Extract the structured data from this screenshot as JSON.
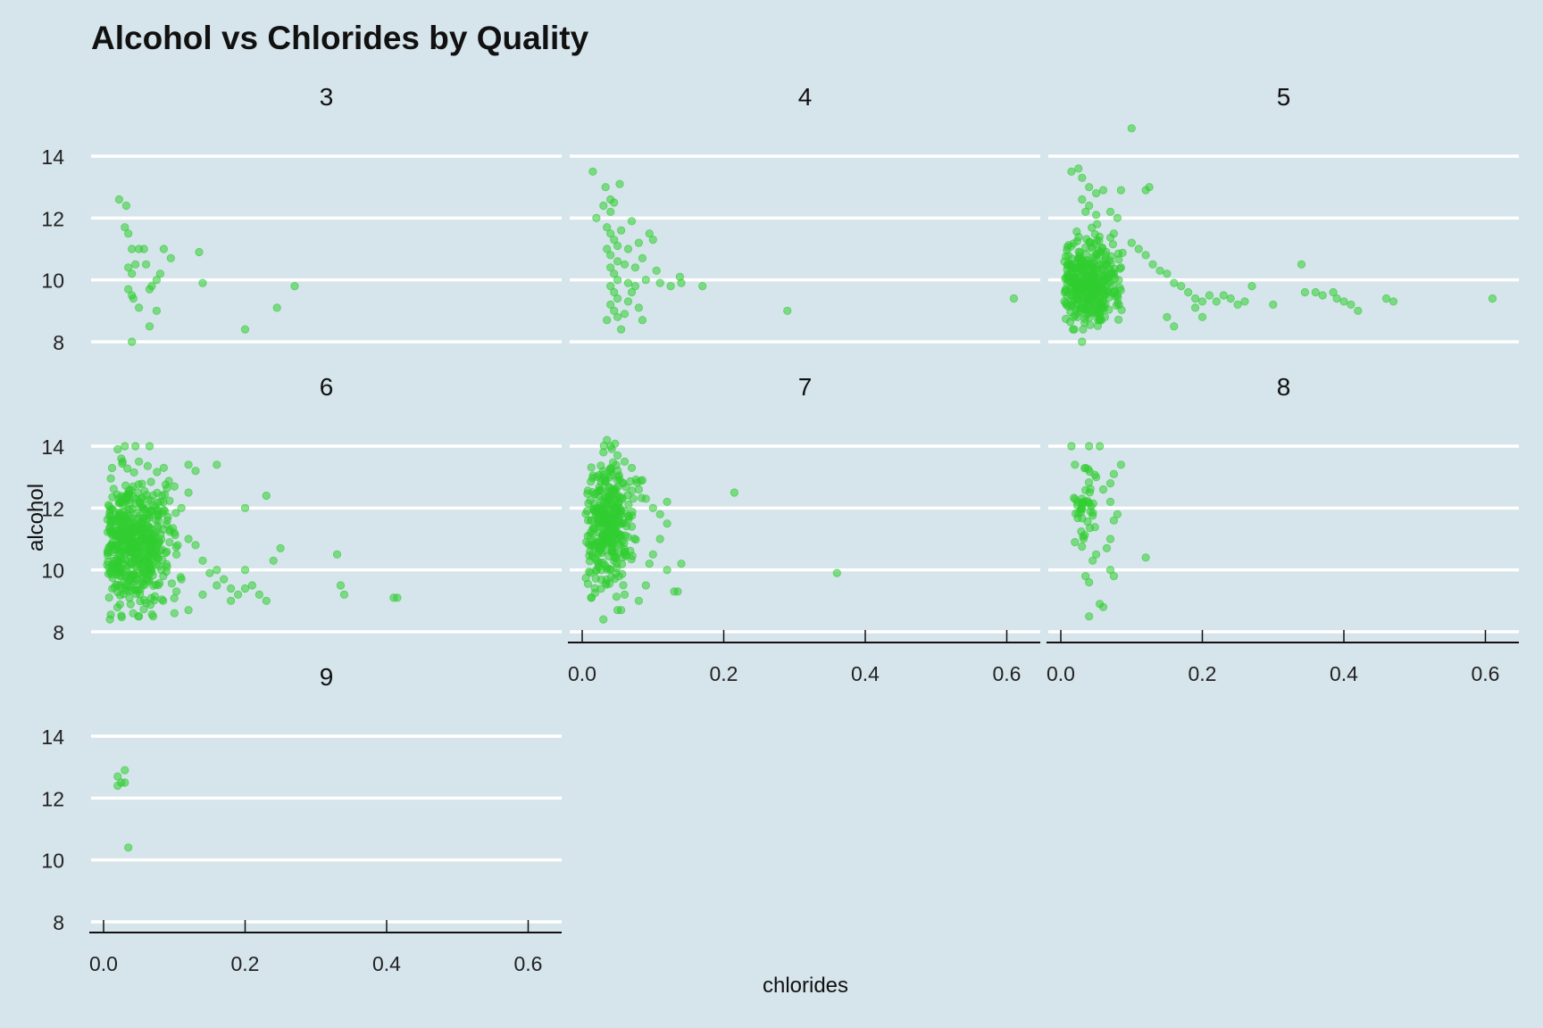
{
  "chart_data": {
    "type": "scatter",
    "title": "Alcohol vs Chlorides by Quality",
    "xlabel": "chlorides",
    "ylabel": "alcohol",
    "xlim": [
      -0.02,
      0.64
    ],
    "ylim": [
      7.6,
      15.2
    ],
    "x_ticks": [
      0.0,
      0.2,
      0.4,
      0.6
    ],
    "x_tick_labels": [
      "0.0",
      "0.2",
      "0.4",
      "0.6"
    ],
    "y_ticks": [
      8,
      10,
      12,
      14
    ],
    "y_tick_labels": [
      "8",
      "10",
      "12",
      "14"
    ],
    "grid": "horizontal major lines",
    "legend": "none",
    "point_color": "#32cd32",
    "facets": [
      {
        "label": "3",
        "points": [
          [
            0.022,
            12.6
          ],
          [
            0.032,
            12.4
          ],
          [
            0.03,
            11.7
          ],
          [
            0.035,
            11.5
          ],
          [
            0.04,
            11.0
          ],
          [
            0.05,
            11.0
          ],
          [
            0.057,
            11.0
          ],
          [
            0.06,
            10.5
          ],
          [
            0.045,
            10.5
          ],
          [
            0.035,
            10.4
          ],
          [
            0.04,
            10.2
          ],
          [
            0.085,
            11.0
          ],
          [
            0.095,
            10.7
          ],
          [
            0.135,
            10.9
          ],
          [
            0.08,
            10.2
          ],
          [
            0.075,
            10.0
          ],
          [
            0.068,
            9.8
          ],
          [
            0.065,
            9.7
          ],
          [
            0.035,
            9.7
          ],
          [
            0.04,
            9.5
          ],
          [
            0.042,
            9.4
          ],
          [
            0.05,
            9.1
          ],
          [
            0.075,
            9.0
          ],
          [
            0.065,
            8.5
          ],
          [
            0.04,
            8.0
          ],
          [
            0.2,
            8.4
          ],
          [
            0.14,
            9.9
          ],
          [
            0.245,
            9.1
          ],
          [
            0.27,
            9.8
          ]
        ]
      },
      {
        "label": "4",
        "points": [
          [
            0.015,
            13.5
          ],
          [
            0.033,
            13.0
          ],
          [
            0.053,
            13.1
          ],
          [
            0.04,
            12.6
          ],
          [
            0.045,
            12.5
          ],
          [
            0.03,
            12.4
          ],
          [
            0.04,
            12.2
          ],
          [
            0.02,
            12.0
          ],
          [
            0.035,
            11.7
          ],
          [
            0.04,
            11.5
          ],
          [
            0.045,
            11.3
          ],
          [
            0.05,
            11.1
          ],
          [
            0.035,
            11.0
          ],
          [
            0.04,
            10.8
          ],
          [
            0.05,
            10.6
          ],
          [
            0.04,
            10.4
          ],
          [
            0.045,
            10.2
          ],
          [
            0.05,
            10.0
          ],
          [
            0.04,
            9.8
          ],
          [
            0.045,
            9.6
          ],
          [
            0.05,
            9.4
          ],
          [
            0.04,
            9.2
          ],
          [
            0.045,
            9.0
          ],
          [
            0.05,
            8.8
          ],
          [
            0.035,
            8.7
          ],
          [
            0.055,
            8.4
          ],
          [
            0.06,
            10.5
          ],
          [
            0.065,
            9.9
          ],
          [
            0.07,
            9.6
          ],
          [
            0.075,
            10.4
          ],
          [
            0.08,
            11.2
          ],
          [
            0.085,
            10.7
          ],
          [
            0.09,
            10.0
          ],
          [
            0.095,
            11.5
          ],
          [
            0.1,
            11.3
          ],
          [
            0.105,
            10.3
          ],
          [
            0.11,
            9.9
          ],
          [
            0.125,
            9.8
          ],
          [
            0.138,
            10.1
          ],
          [
            0.14,
            9.9
          ],
          [
            0.17,
            9.8
          ],
          [
            0.065,
            9.3
          ],
          [
            0.06,
            8.9
          ],
          [
            0.08,
            9.1
          ],
          [
            0.085,
            8.7
          ],
          [
            0.075,
            9.8
          ],
          [
            0.065,
            11.0
          ],
          [
            0.055,
            11.6
          ],
          [
            0.07,
            11.9
          ],
          [
            0.29,
            9.0
          ],
          [
            0.61,
            9.4
          ]
        ]
      },
      {
        "label": "5",
        "points": [
          [
            0.1,
            14.9
          ],
          [
            0.015,
            13.5
          ],
          [
            0.025,
            13.6
          ],
          [
            0.03,
            13.3
          ],
          [
            0.04,
            13.0
          ],
          [
            0.05,
            12.8
          ],
          [
            0.06,
            12.9
          ],
          [
            0.085,
            12.9
          ],
          [
            0.12,
            12.9
          ],
          [
            0.125,
            13.0
          ],
          [
            0.03,
            12.6
          ],
          [
            0.04,
            12.4
          ],
          [
            0.035,
            12.2
          ],
          [
            0.05,
            12.1
          ],
          [
            0.07,
            12.2
          ],
          [
            0.08,
            12.0
          ],
          [
            0.075,
            11.5
          ],
          [
            0.1,
            11.2
          ],
          [
            0.11,
            11.0
          ],
          [
            0.12,
            10.8
          ],
          [
            0.13,
            10.5
          ],
          [
            0.14,
            10.3
          ],
          [
            0.15,
            10.2
          ],
          [
            0.16,
            9.9
          ],
          [
            0.17,
            9.8
          ],
          [
            0.18,
            9.6
          ],
          [
            0.19,
            9.4
          ],
          [
            0.2,
            9.3
          ],
          [
            0.21,
            9.5
          ],
          [
            0.22,
            9.3
          ],
          [
            0.23,
            9.5
          ],
          [
            0.24,
            9.4
          ],
          [
            0.25,
            9.2
          ],
          [
            0.26,
            9.3
          ],
          [
            0.27,
            9.8
          ],
          [
            0.3,
            9.2
          ],
          [
            0.34,
            10.5
          ],
          [
            0.345,
            9.6
          ],
          [
            0.36,
            9.6
          ],
          [
            0.37,
            9.5
          ],
          [
            0.385,
            9.6
          ],
          [
            0.39,
            9.4
          ],
          [
            0.4,
            9.3
          ],
          [
            0.41,
            9.2
          ],
          [
            0.42,
            9.0
          ],
          [
            0.46,
            9.4
          ],
          [
            0.47,
            9.3
          ],
          [
            0.61,
            9.4
          ],
          [
            0.03,
            8.0
          ],
          [
            0.15,
            8.8
          ],
          [
            0.16,
            8.5
          ],
          [
            0.19,
            9.1
          ],
          [
            0.2,
            8.8
          ]
        ]
      },
      {
        "label": "6",
        "points": [
          [
            0.02,
            13.9
          ],
          [
            0.03,
            14.0
          ],
          [
            0.045,
            14.0
          ],
          [
            0.065,
            14.0
          ],
          [
            0.025,
            13.6
          ],
          [
            0.05,
            13.5
          ],
          [
            0.085,
            13.3
          ],
          [
            0.12,
            13.4
          ],
          [
            0.16,
            13.4
          ],
          [
            0.13,
            13.2
          ],
          [
            0.1,
            12.7
          ],
          [
            0.12,
            12.5
          ],
          [
            0.11,
            12.0
          ],
          [
            0.09,
            11.6
          ],
          [
            0.1,
            11.2
          ],
          [
            0.12,
            11.0
          ],
          [
            0.13,
            10.8
          ],
          [
            0.14,
            10.3
          ],
          [
            0.15,
            9.9
          ],
          [
            0.16,
            10.0
          ],
          [
            0.17,
            9.7
          ],
          [
            0.18,
            9.4
          ],
          [
            0.19,
            9.2
          ],
          [
            0.2,
            9.4
          ],
          [
            0.21,
            9.5
          ],
          [
            0.22,
            9.2
          ],
          [
            0.23,
            9.0
          ],
          [
            0.2,
            10.0
          ],
          [
            0.25,
            10.7
          ],
          [
            0.24,
            10.3
          ],
          [
            0.2,
            12.0
          ],
          [
            0.23,
            12.4
          ],
          [
            0.33,
            10.5
          ],
          [
            0.335,
            9.5
          ],
          [
            0.34,
            9.2
          ],
          [
            0.41,
            9.1
          ],
          [
            0.415,
            9.1
          ],
          [
            0.12,
            8.7
          ],
          [
            0.1,
            8.6
          ],
          [
            0.07,
            8.5
          ],
          [
            0.05,
            8.5
          ],
          [
            0.14,
            9.2
          ],
          [
            0.16,
            9.5
          ],
          [
            0.18,
            9.0
          ],
          [
            0.11,
            9.7
          ]
        ]
      },
      {
        "label": "7",
        "points": [
          [
            0.035,
            14.2
          ],
          [
            0.04,
            14.0
          ],
          [
            0.03,
            13.8
          ],
          [
            0.05,
            13.7
          ],
          [
            0.06,
            13.5
          ],
          [
            0.07,
            13.3
          ],
          [
            0.08,
            12.6
          ],
          [
            0.09,
            12.3
          ],
          [
            0.1,
            12.0
          ],
          [
            0.11,
            11.8
          ],
          [
            0.12,
            11.5
          ],
          [
            0.12,
            12.2
          ],
          [
            0.11,
            11.0
          ],
          [
            0.1,
            10.5
          ],
          [
            0.095,
            10.2
          ],
          [
            0.12,
            10.0
          ],
          [
            0.14,
            10.2
          ],
          [
            0.13,
            9.3
          ],
          [
            0.135,
            9.3
          ],
          [
            0.09,
            9.5
          ],
          [
            0.08,
            9.0
          ],
          [
            0.05,
            8.7
          ],
          [
            0.055,
            8.7
          ],
          [
            0.215,
            12.5
          ],
          [
            0.36,
            9.9
          ],
          [
            0.06,
            9.2
          ],
          [
            0.07,
            11.4
          ],
          [
            0.085,
            12.9
          ]
        ]
      },
      {
        "label": "8",
        "points": [
          [
            0.015,
            14.0
          ],
          [
            0.04,
            14.0
          ],
          [
            0.055,
            14.0
          ],
          [
            0.02,
            13.4
          ],
          [
            0.035,
            13.3
          ],
          [
            0.05,
            13.0
          ],
          [
            0.07,
            12.8
          ],
          [
            0.075,
            13.1
          ],
          [
            0.085,
            13.4
          ],
          [
            0.06,
            12.6
          ],
          [
            0.07,
            12.2
          ],
          [
            0.08,
            11.8
          ],
          [
            0.075,
            11.6
          ],
          [
            0.07,
            11.0
          ],
          [
            0.065,
            10.7
          ],
          [
            0.05,
            10.5
          ],
          [
            0.045,
            10.3
          ],
          [
            0.035,
            9.8
          ],
          [
            0.04,
            9.6
          ],
          [
            0.07,
            10.0
          ],
          [
            0.075,
            9.8
          ],
          [
            0.12,
            10.4
          ],
          [
            0.055,
            8.9
          ],
          [
            0.06,
            8.8
          ],
          [
            0.04,
            8.5
          ],
          [
            0.02,
            10.9
          ],
          [
            0.03,
            12.3
          ]
        ]
      },
      {
        "label": "9",
        "points": [
          [
            0.02,
            12.7
          ],
          [
            0.03,
            12.9
          ],
          [
            0.025,
            12.5
          ],
          [
            0.03,
            12.5
          ],
          [
            0.035,
            10.4
          ],
          [
            0.02,
            12.4
          ]
        ]
      }
    ]
  }
}
